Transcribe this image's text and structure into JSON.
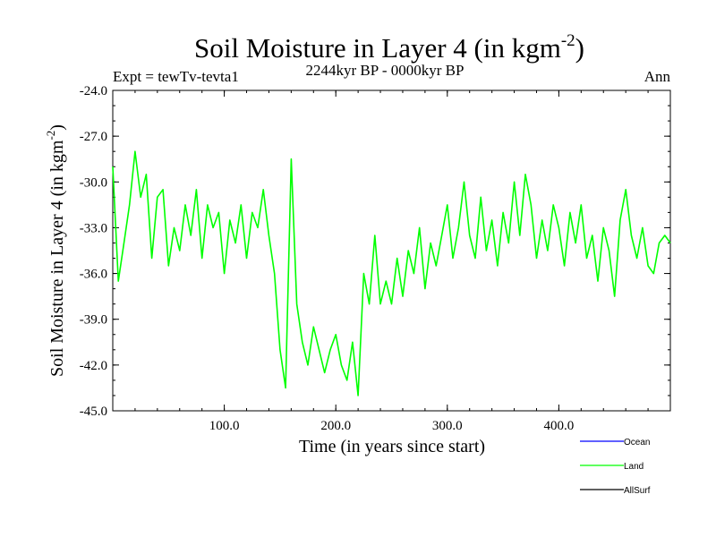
{
  "chart_data": {
    "type": "line",
    "title_main": "Soil Moisture in Layer 4 (in kgm",
    "title_sup": "-2",
    "title_close": ")",
    "subtitle": "2244kyr BP - 0000kyr BP",
    "experiment": "Expt = tewTv-tevta1",
    "season": "Ann",
    "ylabel_main": "Soil Moisture in Layer 4 (in kgm",
    "ylabel_sup": "-2",
    "ylabel_close": ")",
    "xlabel": "Time (in years since start)",
    "xlim": [
      0,
      500
    ],
    "ylim": [
      -45,
      -24
    ],
    "x_ticks": [
      100,
      200,
      300,
      400
    ],
    "x_tick_labels": [
      "100.0",
      "200.0",
      "300.0",
      "400.0"
    ],
    "y_ticks": [
      -24,
      -27,
      -30,
      -33,
      -36,
      -39,
      -42,
      -45
    ],
    "y_tick_labels": [
      "-24.0",
      "-27.0",
      "-30.0",
      "-33.0",
      "-36.0",
      "-39.0",
      "-42.0",
      "-45.0"
    ],
    "legend": [
      {
        "name": "Ocean",
        "color": "#0000ff"
      },
      {
        "name": "Land",
        "color": "#00ff00"
      },
      {
        "name": "AllSurf",
        "color": "#000000"
      }
    ],
    "series": [
      {
        "name": "Land",
        "color": "#00ff00",
        "x": [
          0,
          5,
          10,
          15,
          20,
          25,
          30,
          35,
          40,
          45,
          50,
          55,
          60,
          65,
          70,
          75,
          80,
          85,
          90,
          95,
          100,
          105,
          110,
          115,
          120,
          125,
          130,
          135,
          140,
          145,
          150,
          155,
          160,
          165,
          170,
          175,
          180,
          185,
          190,
          195,
          200,
          205,
          210,
          215,
          220,
          225,
          230,
          235,
          240,
          245,
          250,
          255,
          260,
          265,
          270,
          275,
          280,
          285,
          290,
          295,
          300,
          305,
          310,
          315,
          320,
          325,
          330,
          335,
          340,
          345,
          350,
          355,
          360,
          365,
          370,
          375,
          380,
          385,
          390,
          395,
          400,
          405,
          410,
          415,
          420,
          425,
          430,
          435,
          440,
          445,
          450,
          455,
          460,
          465,
          470,
          475,
          480,
          485,
          490,
          495,
          500
        ],
        "values": [
          -29.0,
          -36.5,
          -34.0,
          -31.5,
          -28.0,
          -31.0,
          -29.5,
          -35.0,
          -31.0,
          -30.5,
          -35.5,
          -33.0,
          -34.5,
          -31.5,
          -33.5,
          -30.5,
          -35.0,
          -31.5,
          -33.0,
          -32.0,
          -36.0,
          -32.5,
          -34.0,
          -31.5,
          -35.0,
          -32.0,
          -33.0,
          -30.5,
          -33.5,
          -36.0,
          -41.0,
          -43.5,
          -28.5,
          -38.0,
          -40.5,
          -42.0,
          -39.5,
          -41.0,
          -42.5,
          -41.0,
          -40.0,
          -42.0,
          -43.0,
          -40.5,
          -44.0,
          -36.0,
          -38.0,
          -33.5,
          -38.0,
          -36.5,
          -38.0,
          -35.0,
          -37.5,
          -34.5,
          -36.0,
          -33.0,
          -37.0,
          -34.0,
          -35.5,
          -33.5,
          -31.5,
          -35.0,
          -33.0,
          -30.0,
          -33.5,
          -35.0,
          -31.0,
          -34.5,
          -32.5,
          -35.5,
          -32.0,
          -34.0,
          -30.0,
          -33.5,
          -29.5,
          -31.5,
          -35.0,
          -32.5,
          -34.5,
          -31.5,
          -33.0,
          -35.5,
          -32.0,
          -34.0,
          -31.5,
          -35.0,
          -33.5,
          -36.5,
          -33.0,
          -34.5,
          -37.5,
          -32.5,
          -30.5,
          -33.5,
          -35.0,
          -33.0,
          -35.5,
          -36.0,
          -34.0,
          -33.5,
          -34.0
        ]
      }
    ]
  }
}
